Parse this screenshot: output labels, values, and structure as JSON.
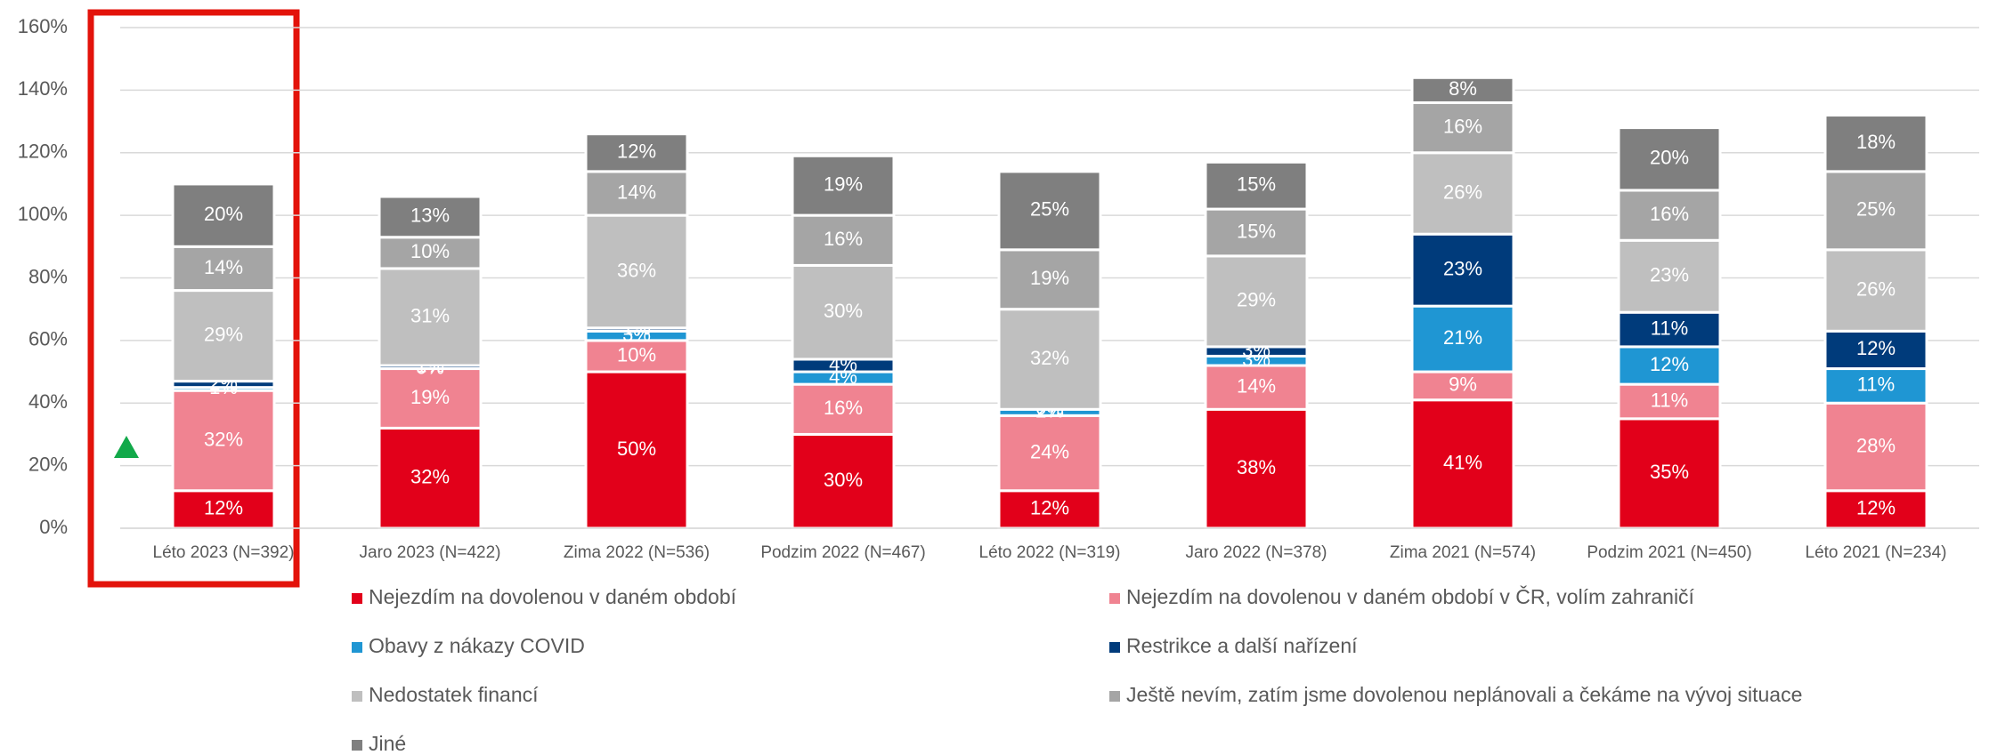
{
  "chart_data": {
    "type": "stacked_bar",
    "categories": [
      "Léto 2023 (N=392)",
      "Jaro 2023 (N=422)",
      "Zima 2022 (N=536)",
      "Podzim 2022 (N=467)",
      "Léto 2022 (N=319)",
      "Jaro 2022 (N=378)",
      "Zima 2021 (N=574)",
      "Podzim 2021 (N=450)",
      "Léto 2021 (N=234)"
    ],
    "series": [
      {
        "name": "Nejezdím na dovolenou v daném období",
        "color": "#e2001a",
        "values": [
          12,
          32,
          50,
          30,
          12,
          38,
          41,
          35,
          12
        ],
        "value_labels": [
          "12%",
          "32%",
          "50%",
          "30%",
          "12%",
          "38%",
          "41%",
          "35%",
          "12%"
        ]
      },
      {
        "name": "Nejezdím na dovolenou v daném období v ČR, volím zahraničí",
        "color": "#f08391",
        "values": [
          32,
          19,
          10,
          16,
          24,
          14,
          9,
          11,
          28
        ],
        "value_labels": [
          "32%",
          "19%",
          "10%",
          "16%",
          "24%",
          "14%",
          "9%",
          "11%",
          "28%"
        ]
      },
      {
        "name": "Obavy z nákazy COVID",
        "color": "#1f96d3",
        "values": [
          1,
          0,
          3,
          4,
          2,
          3,
          21,
          12,
          11
        ],
        "value_labels": [
          "1%",
          "0%",
          "3%",
          "4%",
          "2%",
          "3%",
          "21%",
          "12%",
          "11%"
        ]
      },
      {
        "name": "Restrikce a další nařízení",
        "color": "#003b7b",
        "values": [
          2,
          1,
          1,
          4,
          0,
          3,
          23,
          11,
          12
        ],
        "value_labels": [
          "2%",
          "1%",
          "1%",
          "4%",
          "0%",
          "3%",
          "23%",
          "11%",
          "12%"
        ]
      },
      {
        "name": "Nedostatek financí",
        "color": "#bfbfbf",
        "values": [
          29,
          31,
          36,
          30,
          32,
          29,
          26,
          23,
          26
        ],
        "value_labels": [
          "29%",
          "31%",
          "36%",
          "30%",
          "32%",
          "29%",
          "26%",
          "23%",
          "26%"
        ]
      },
      {
        "name": "Ještě nevím, zatím jsme dovolenou neplánovali a čekáme na vývoj situace",
        "color": "#a5a5a5",
        "values": [
          14,
          10,
          14,
          16,
          19,
          15,
          16,
          16,
          25
        ],
        "value_labels": [
          "14%",
          "10%",
          "14%",
          "16%",
          "19%",
          "15%",
          "16%",
          "16%",
          "25%"
        ]
      },
      {
        "name": "Jiné",
        "color": "#7f7f7f",
        "values": [
          20,
          13,
          12,
          19,
          25,
          15,
          8,
          20,
          18
        ],
        "value_labels": [
          "20%",
          "13%",
          "12%",
          "19%",
          "25%",
          "15%",
          "8%",
          "20%",
          "18%"
        ]
      }
    ],
    "ylim": [
      0,
      160
    ],
    "yticks": [
      {
        "value": 0,
        "label": "0%"
      },
      {
        "value": 20,
        "label": "20%"
      },
      {
        "value": 40,
        "label": "40%"
      },
      {
        "value": 60,
        "label": "60%"
      },
      {
        "value": 80,
        "label": "80%"
      },
      {
        "value": 100,
        "label": "100%"
      },
      {
        "value": 120,
        "label": "120%"
      },
      {
        "value": 140,
        "label": "140%"
      },
      {
        "value": 160,
        "label": "160%"
      }
    ],
    "grid": true
  }
}
